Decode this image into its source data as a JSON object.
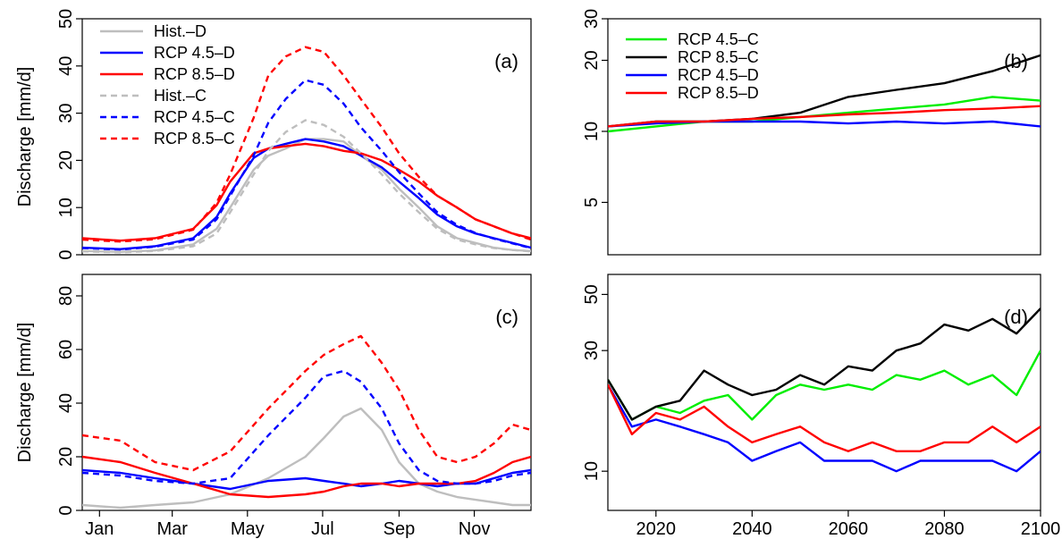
{
  "chart_data": [
    {
      "panel": "(a)",
      "type": "line",
      "ylabel": "Discharge [mm/d]",
      "ylim": [
        0,
        50
      ],
      "yticks": [
        0,
        10,
        20,
        30,
        40,
        50
      ],
      "xlim": [
        1,
        365
      ],
      "xtick_labels": [],
      "legend_placement": "top-left",
      "series": [
        {
          "name": "Hist.–D",
          "color": "#bebebe",
          "dash": "solid",
          "x": [
            1,
            32,
            60,
            91,
            110,
            121,
            140,
            152,
            166,
            182,
            197,
            213,
            227,
            244,
            258,
            274,
            289,
            305,
            320,
            335,
            350,
            365
          ],
          "y": [
            0.8,
            0.6,
            0.9,
            2.2,
            5.5,
            10,
            18,
            21,
            22.5,
            24.5,
            24.5,
            24,
            21,
            18,
            14,
            10,
            6,
            3.5,
            2.5,
            1.5,
            1,
            0.8
          ]
        },
        {
          "name": "RCP 4.5–D",
          "color": "#0000ff",
          "dash": "solid",
          "x": [
            1,
            32,
            60,
            91,
            110,
            121,
            140,
            152,
            166,
            182,
            197,
            213,
            227,
            244,
            258,
            274,
            289,
            305,
            320,
            335,
            350,
            365
          ],
          "y": [
            1.5,
            1.2,
            1.8,
            3.5,
            8,
            13,
            20.5,
            22.5,
            23.5,
            24.5,
            24,
            23,
            21,
            18.5,
            15.5,
            12,
            8.5,
            6,
            4.5,
            3.5,
            2.5,
            1.5
          ]
        },
        {
          "name": "RCP 8.5–D",
          "color": "#ff0000",
          "dash": "solid",
          "x": [
            1,
            32,
            60,
            91,
            110,
            121,
            140,
            152,
            166,
            182,
            197,
            213,
            227,
            244,
            258,
            274,
            289,
            305,
            320,
            335,
            350,
            365
          ],
          "y": [
            3.5,
            3,
            3.5,
            5.5,
            10.5,
            15.5,
            21.5,
            22.5,
            23,
            23.5,
            23,
            22,
            21.5,
            20,
            18,
            15.5,
            12.5,
            10,
            7.5,
            6,
            4.5,
            3.5
          ]
        },
        {
          "name": "Hist.–C",
          "color": "#bebebe",
          "dash": "dashed",
          "x": [
            1,
            32,
            60,
            91,
            110,
            121,
            140,
            152,
            166,
            182,
            197,
            213,
            227,
            244,
            258,
            274,
            289,
            305,
            320,
            335,
            350,
            365
          ],
          "y": [
            0.7,
            0.5,
            0.8,
            1.8,
            4.5,
            9,
            17,
            22,
            26,
            28.5,
            27.5,
            25,
            21.5,
            17,
            13,
            9,
            5.5,
            3.2,
            2.2,
            1.4,
            1,
            0.7
          ]
        },
        {
          "name": "RCP 4.5–C",
          "color": "#0000ff",
          "dash": "dashed",
          "x": [
            1,
            32,
            60,
            91,
            110,
            121,
            140,
            152,
            166,
            182,
            197,
            213,
            227,
            244,
            258,
            274,
            289,
            305,
            320,
            335,
            350,
            365
          ],
          "y": [
            1.4,
            1.1,
            1.7,
            3.2,
            7.5,
            12.5,
            21,
            28,
            33,
            37,
            36,
            32,
            27,
            22,
            17.5,
            13,
            9,
            6.3,
            4.6,
            3.4,
            2.4,
            1.4
          ]
        },
        {
          "name": "RCP 8.5–C",
          "color": "#ff0000",
          "dash": "dashed",
          "x": [
            1,
            32,
            60,
            91,
            110,
            121,
            140,
            152,
            166,
            182,
            197,
            213,
            227,
            244,
            258,
            274,
            289,
            305,
            320,
            335,
            350,
            365
          ],
          "y": [
            3.2,
            2.8,
            3.3,
            5.3,
            11,
            17,
            29,
            38,
            42,
            44,
            43,
            38,
            33,
            27,
            21.5,
            16.5,
            12.5,
            10,
            7.5,
            6,
            4.5,
            3.2
          ]
        }
      ]
    },
    {
      "panel": "(b)",
      "type": "line",
      "ylim": [
        3,
        30
      ],
      "yticks": [
        5,
        10,
        20,
        30
      ],
      "ylog": true,
      "xlim": [
        2010,
        2100
      ],
      "xtick_labels": [],
      "legend_placement": "top-left",
      "series": [
        {
          "name": "RCP 4.5–C",
          "color": "#00ee00",
          "x": [
            2010,
            2020,
            2030,
            2040,
            2050,
            2060,
            2070,
            2080,
            2090,
            2100
          ],
          "y": [
            10,
            10.5,
            11,
            11,
            11.5,
            12,
            12.5,
            13,
            14,
            13.5
          ]
        },
        {
          "name": "RCP 8.5–C",
          "color": "#000000",
          "x": [
            2010,
            2020,
            2030,
            2040,
            2050,
            2060,
            2070,
            2080,
            2090,
            2100
          ],
          "y": [
            10.5,
            11,
            11,
            11.3,
            12,
            14,
            15,
            16,
            18,
            21
          ]
        },
        {
          "name": "RCP 4.5–D",
          "color": "#0000ff",
          "x": [
            2010,
            2020,
            2030,
            2040,
            2050,
            2060,
            2070,
            2080,
            2090,
            2100
          ],
          "y": [
            10.5,
            10.8,
            11,
            11,
            11,
            10.8,
            11,
            10.8,
            11,
            10.5
          ]
        },
        {
          "name": "RCP 8.5–D",
          "color": "#ff0000",
          "x": [
            2010,
            2020,
            2030,
            2040,
            2050,
            2060,
            2070,
            2080,
            2090,
            2100
          ],
          "y": [
            10.5,
            11,
            11,
            11.3,
            11.5,
            11.8,
            12,
            12.3,
            12.5,
            12.8
          ]
        }
      ]
    },
    {
      "panel": "(c)",
      "type": "line",
      "ylabel": "Discharge [mm/d]",
      "ylim": [
        0,
        88
      ],
      "yticks": [
        0,
        20,
        40,
        60,
        80
      ],
      "xlim": [
        1,
        365
      ],
      "xtick_labels": [
        "Jan",
        "Mar",
        "May",
        "Jul",
        "Sep",
        "Nov"
      ],
      "xtick_positions": [
        15,
        74,
        135,
        196,
        258,
        319
      ],
      "series": [
        {
          "name": "Hist.–D",
          "color": "#bebebe",
          "dash": "solid",
          "x": [
            1,
            32,
            60,
            91,
            121,
            152,
            182,
            197,
            213,
            227,
            244,
            258,
            274,
            289,
            305,
            320,
            335,
            350,
            365
          ],
          "y": [
            2,
            1,
            2,
            3,
            6,
            12,
            20,
            27,
            35,
            38,
            30,
            18,
            10,
            7,
            5,
            4,
            3,
            2,
            2
          ]
        },
        {
          "name": "RCP 4.5–D",
          "color": "#0000ff",
          "dash": "solid",
          "x": [
            1,
            32,
            60,
            91,
            121,
            152,
            182,
            197,
            213,
            227,
            244,
            258,
            274,
            289,
            305,
            320,
            335,
            350,
            365
          ],
          "y": [
            15,
            14,
            12,
            10,
            8,
            11,
            12,
            11,
            10,
            9,
            10,
            11,
            10,
            9,
            10,
            10,
            12,
            14,
            15
          ]
        },
        {
          "name": "RCP 8.5–D",
          "color": "#ff0000",
          "dash": "solid",
          "x": [
            1,
            32,
            60,
            91,
            121,
            152,
            182,
            197,
            213,
            227,
            244,
            258,
            274,
            289,
            305,
            320,
            335,
            350,
            365
          ],
          "y": [
            20,
            18,
            14,
            10,
            6,
            5,
            6,
            7,
            9,
            10,
            10,
            9,
            10,
            10,
            10,
            11,
            14,
            18,
            20
          ]
        },
        {
          "name": "RCP 4.5–C",
          "color": "#0000ff",
          "dash": "dashed",
          "x": [
            1,
            32,
            60,
            91,
            121,
            152,
            182,
            197,
            213,
            227,
            244,
            258,
            274,
            289,
            305,
            320,
            335,
            350,
            365
          ],
          "y": [
            14,
            13,
            11,
            10,
            12,
            28,
            42,
            50,
            52,
            48,
            38,
            25,
            15,
            11,
            10,
            10,
            11,
            13,
            14
          ]
        },
        {
          "name": "RCP 8.5–C",
          "color": "#ff0000",
          "dash": "dashed",
          "x": [
            1,
            32,
            60,
            91,
            121,
            152,
            182,
            197,
            213,
            227,
            244,
            258,
            274,
            289,
            305,
            320,
            335,
            350,
            365
          ],
          "y": [
            28,
            26,
            18,
            15,
            22,
            38,
            52,
            58,
            62,
            65,
            55,
            45,
            30,
            20,
            18,
            20,
            25,
            32,
            30
          ]
        }
      ]
    },
    {
      "panel": "(d)",
      "type": "line",
      "ylim": [
        7,
        60
      ],
      "yticks": [
        10,
        30,
        50
      ],
      "ylog": true,
      "xlim": [
        2010,
        2100
      ],
      "xtick_labels": [
        "2020",
        "2040",
        "2060",
        "2080",
        "2100"
      ],
      "xtick_positions": [
        2020,
        2040,
        2060,
        2080,
        2100
      ],
      "series": [
        {
          "name": "RCP 4.5–C",
          "color": "#00ee00",
          "x": [
            2010,
            2015,
            2020,
            2025,
            2030,
            2035,
            2040,
            2045,
            2050,
            2055,
            2060,
            2065,
            2070,
            2075,
            2080,
            2085,
            2090,
            2095,
            2100
          ],
          "y": [
            23,
            16,
            18,
            17,
            19,
            20,
            16,
            20,
            22,
            21,
            22,
            21,
            24,
            23,
            25,
            22,
            24,
            20,
            30
          ]
        },
        {
          "name": "RCP 8.5–C",
          "color": "#000000",
          "x": [
            2010,
            2015,
            2020,
            2025,
            2030,
            2035,
            2040,
            2045,
            2050,
            2055,
            2060,
            2065,
            2070,
            2075,
            2080,
            2085,
            2090,
            2095,
            2100
          ],
          "y": [
            23,
            16,
            18,
            19,
            25,
            22,
            20,
            21,
            24,
            22,
            26,
            25,
            30,
            32,
            38,
            36,
            40,
            35,
            44
          ]
        },
        {
          "name": "RCP 4.5–D",
          "color": "#0000ff",
          "x": [
            2010,
            2015,
            2020,
            2025,
            2030,
            2035,
            2040,
            2045,
            2050,
            2055,
            2060,
            2065,
            2070,
            2075,
            2080,
            2085,
            2090,
            2095,
            2100
          ],
          "y": [
            22,
            15,
            16,
            15,
            14,
            13,
            11,
            12,
            13,
            11,
            11,
            11,
            10,
            11,
            11,
            11,
            11,
            10,
            12
          ]
        },
        {
          "name": "RCP 8.5–D",
          "color": "#ff0000",
          "x": [
            2010,
            2015,
            2020,
            2025,
            2030,
            2035,
            2040,
            2045,
            2050,
            2055,
            2060,
            2065,
            2070,
            2075,
            2080,
            2085,
            2090,
            2095,
            2100
          ],
          "y": [
            22,
            14,
            17,
            16,
            18,
            15,
            13,
            14,
            15,
            13,
            12,
            13,
            12,
            12,
            13,
            13,
            15,
            13,
            15
          ]
        }
      ]
    }
  ]
}
